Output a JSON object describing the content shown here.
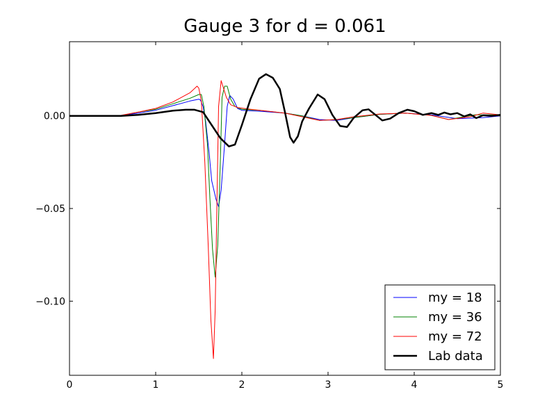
{
  "chart_data": {
    "type": "line",
    "title": "Gauge 3 for d = 0.061",
    "xlabel": "",
    "ylabel": "",
    "xlim": [
      0,
      5
    ],
    "ylim": [
      -0.14,
      0.04
    ],
    "grid": false,
    "legend_position": "bottom-right",
    "x_ticks": [
      0,
      1,
      2,
      3,
      4,
      5
    ],
    "x_tick_labels": [
      "0",
      "1",
      "2",
      "3",
      "4",
      "5"
    ],
    "y_ticks": [
      0.0,
      -0.05,
      -0.1
    ],
    "y_tick_labels": [
      "0.00",
      "−0.05",
      "−0.10"
    ],
    "series": [
      {
        "name": "my = 18",
        "color": "#0000ff",
        "width": 1,
        "points": [
          [
            0,
            0
          ],
          [
            0.5,
            0
          ],
          [
            0.6,
            0.0002
          ],
          [
            0.8,
            0.0015
          ],
          [
            1.0,
            0.003
          ],
          [
            1.2,
            0.0055
          ],
          [
            1.4,
            0.008
          ],
          [
            1.5,
            0.009
          ],
          [
            1.52,
            0.0085
          ],
          [
            1.55,
            0.005
          ],
          [
            1.58,
            -0.003
          ],
          [
            1.62,
            -0.02
          ],
          [
            1.65,
            -0.035
          ],
          [
            1.7,
            -0.045
          ],
          [
            1.73,
            -0.049
          ],
          [
            1.76,
            -0.04
          ],
          [
            1.8,
            -0.015
          ],
          [
            1.83,
            0.005
          ],
          [
            1.86,
            0.011
          ],
          [
            1.9,
            0.009
          ],
          [
            1.95,
            0.004
          ],
          [
            2.0,
            0.003
          ],
          [
            2.2,
            0.0025
          ],
          [
            2.5,
            0.0015
          ],
          [
            2.7,
            0
          ],
          [
            2.9,
            -0.002
          ],
          [
            3.1,
            -0.0025
          ],
          [
            3.3,
            -0.001
          ],
          [
            3.6,
            0.0008
          ],
          [
            3.9,
            0.0015
          ],
          [
            4.2,
            0.0005
          ],
          [
            4.5,
            -0.0015
          ],
          [
            4.8,
            -0.001
          ],
          [
            5.0,
            0
          ]
        ]
      },
      {
        "name": "my = 36",
        "color": "#008000",
        "width": 1,
        "points": [
          [
            0,
            0
          ],
          [
            0.5,
            0
          ],
          [
            0.6,
            0.0002
          ],
          [
            0.8,
            0.002
          ],
          [
            1.0,
            0.0035
          ],
          [
            1.2,
            0.0065
          ],
          [
            1.4,
            0.0095
          ],
          [
            1.5,
            0.0115
          ],
          [
            1.53,
            0.0115
          ],
          [
            1.56,
            0.005
          ],
          [
            1.6,
            -0.015
          ],
          [
            1.63,
            -0.045
          ],
          [
            1.66,
            -0.072
          ],
          [
            1.69,
            -0.087
          ],
          [
            1.72,
            -0.07
          ],
          [
            1.75,
            -0.025
          ],
          [
            1.77,
            0.01
          ],
          [
            1.8,
            0.016
          ],
          [
            1.83,
            0.016
          ],
          [
            1.87,
            0.009
          ],
          [
            1.92,
            0.005
          ],
          [
            2.0,
            0.0035
          ],
          [
            2.2,
            0.003
          ],
          [
            2.5,
            0.0015
          ],
          [
            2.7,
            0
          ],
          [
            2.9,
            -0.0025
          ],
          [
            3.1,
            -0.002
          ],
          [
            3.3,
            -0.001
          ],
          [
            3.6,
            0.0008
          ],
          [
            3.9,
            0.0015
          ],
          [
            4.2,
            0.0003
          ],
          [
            4.4,
            -0.002
          ],
          [
            4.7,
            0.0005
          ],
          [
            5.0,
            0.0005
          ]
        ]
      },
      {
        "name": "my = 72",
        "color": "#ff0000",
        "width": 1,
        "points": [
          [
            0,
            0
          ],
          [
            0.5,
            0
          ],
          [
            0.6,
            0.0003
          ],
          [
            0.8,
            0.002
          ],
          [
            1.0,
            0.004
          ],
          [
            1.2,
            0.0075
          ],
          [
            1.4,
            0.0125
          ],
          [
            1.48,
            0.016
          ],
          [
            1.5,
            0.015
          ],
          [
            1.53,
            0.008
          ],
          [
            1.57,
            -0.025
          ],
          [
            1.61,
            -0.07
          ],
          [
            1.64,
            -0.11
          ],
          [
            1.67,
            -0.131
          ],
          [
            1.69,
            -0.105
          ],
          [
            1.71,
            -0.05
          ],
          [
            1.73,
            0.005
          ],
          [
            1.76,
            0.019
          ],
          [
            1.78,
            0.016
          ],
          [
            1.82,
            0.01
          ],
          [
            1.87,
            0.006
          ],
          [
            1.95,
            0.0045
          ],
          [
            2.1,
            0.0035
          ],
          [
            2.3,
            0.0025
          ],
          [
            2.5,
            0.0015
          ],
          [
            2.7,
            -0.0005
          ],
          [
            2.9,
            -0.0025
          ],
          [
            3.1,
            -0.002
          ],
          [
            3.3,
            -0.0005
          ],
          [
            3.6,
            0.001
          ],
          [
            3.9,
            0.0015
          ],
          [
            4.2,
            0.0002
          ],
          [
            4.4,
            -0.002
          ],
          [
            4.65,
            -0.0005
          ],
          [
            4.8,
            0.0015
          ],
          [
            5.0,
            0.0005
          ]
        ]
      },
      {
        "name": "Lab data",
        "color": "#000000",
        "width": 2.5,
        "points": [
          [
            0,
            0
          ],
          [
            0.6,
            0
          ],
          [
            0.8,
            0.0005
          ],
          [
            1.0,
            0.0015
          ],
          [
            1.2,
            0.0028
          ],
          [
            1.35,
            0.0033
          ],
          [
            1.45,
            0.0033
          ],
          [
            1.55,
            0.002
          ],
          [
            1.65,
            -0.005
          ],
          [
            1.75,
            -0.012
          ],
          [
            1.85,
            -0.0165
          ],
          [
            1.92,
            -0.0155
          ],
          [
            2.0,
            -0.005
          ],
          [
            2.1,
            0.009
          ],
          [
            2.2,
            0.02
          ],
          [
            2.28,
            0.0225
          ],
          [
            2.36,
            0.0205
          ],
          [
            2.44,
            0.0145
          ],
          [
            2.5,
            0.002
          ],
          [
            2.56,
            -0.0115
          ],
          [
            2.6,
            -0.0145
          ],
          [
            2.65,
            -0.011
          ],
          [
            2.7,
            -0.003
          ],
          [
            2.78,
            0.004
          ],
          [
            2.88,
            0.0115
          ],
          [
            2.96,
            0.009
          ],
          [
            3.05,
            0.0005
          ],
          [
            3.14,
            -0.0055
          ],
          [
            3.22,
            -0.006
          ],
          [
            3.3,
            -0.001
          ],
          [
            3.4,
            0.003
          ],
          [
            3.47,
            0.0035
          ],
          [
            3.55,
            0.0005
          ],
          [
            3.63,
            -0.0025
          ],
          [
            3.72,
            -0.0015
          ],
          [
            3.82,
            0.0015
          ],
          [
            3.92,
            0.0033
          ],
          [
            4.0,
            0.0025
          ],
          [
            4.1,
            0.0005
          ],
          [
            4.2,
            0.0015
          ],
          [
            4.28,
            0.0005
          ],
          [
            4.35,
            0.0018
          ],
          [
            4.42,
            0.0008
          ],
          [
            4.5,
            0.0015
          ],
          [
            4.58,
            -0.0003
          ],
          [
            4.65,
            0.0008
          ],
          [
            4.72,
            -0.0012
          ],
          [
            4.8,
            0.0003
          ],
          [
            4.9,
            0.0
          ],
          [
            5.0,
            0.0005
          ]
        ]
      }
    ]
  }
}
